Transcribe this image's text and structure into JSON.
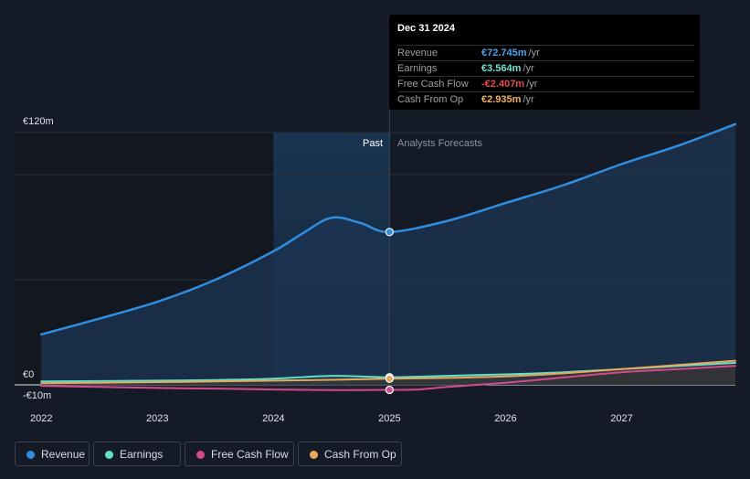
{
  "tooltip": {
    "date": "Dec 31 2024",
    "rows": [
      {
        "label": "Revenue",
        "value": "€72.745m",
        "unit": "/yr",
        "color": "#4aa3e8"
      },
      {
        "label": "Earnings",
        "value": "€3.564m",
        "unit": "/yr",
        "color": "#6fe3d0"
      },
      {
        "label": "Free Cash Flow",
        "value": "-€2.407m",
        "unit": "/yr",
        "color": "#e8494d"
      },
      {
        "label": "Cash From Op",
        "value": "€2.935m",
        "unit": "/yr",
        "color": "#f0b060"
      }
    ]
  },
  "legend": [
    {
      "label": "Revenue",
      "color": "#2f8ee0"
    },
    {
      "label": "Earnings",
      "color": "#5fe0c8"
    },
    {
      "label": "Free Cash Flow",
      "color": "#d24a8c"
    },
    {
      "label": "Cash From Op",
      "color": "#e8a85a"
    }
  ],
  "chart_data": {
    "type": "line",
    "past_label": "Past",
    "forecast_label": "Analysts Forecasts",
    "y_tick_labels": [
      {
        "value": 120,
        "label": "€120m"
      },
      {
        "value": 0,
        "label": "€0"
      },
      {
        "value": -10,
        "label": "-€10m"
      }
    ],
    "x_tick_labels": [
      "2022",
      "2023",
      "2024",
      "2025",
      "2026",
      "2027"
    ],
    "x_ticks": [
      2022,
      2023,
      2024,
      2025,
      2026,
      2027
    ],
    "xlim": [
      2021.77,
      2027.98
    ],
    "ylim": [
      -10,
      120
    ],
    "divider_x": 2025.0,
    "highlight_start_x": 2024.0,
    "grid": true,
    "legend_position": "bottom-left",
    "series": [
      {
        "name": "Revenue",
        "color": "#2f8ee0",
        "x": [
          2022.0,
          2022.5,
          2023.0,
          2023.5,
          2024.0,
          2024.25,
          2024.5,
          2024.75,
          2025.0,
          2025.5,
          2026.0,
          2026.5,
          2027.0,
          2027.5,
          2027.98
        ],
        "y": [
          24,
          31.5,
          39.5,
          50,
          63.5,
          72,
          79.5,
          77,
          72.7,
          78,
          86.5,
          95,
          105,
          114,
          124
        ]
      },
      {
        "name": "Earnings",
        "color": "#5fe0c8",
        "x": [
          2022.0,
          2022.5,
          2023.0,
          2023.5,
          2024.0,
          2024.5,
          2025.0,
          2025.5,
          2026.0,
          2026.5,
          2027.0,
          2027.5,
          2027.98
        ],
        "y": [
          1.6,
          1.8,
          2.0,
          2.3,
          2.9,
          4.3,
          3.6,
          4.3,
          5.0,
          6.0,
          7.5,
          9.0,
          10.5
        ]
      },
      {
        "name": "Free Cash Flow",
        "color": "#d24a8c",
        "x": [
          2022.0,
          2022.5,
          2023.0,
          2023.5,
          2024.0,
          2024.5,
          2025.0,
          2025.25,
          2025.5,
          2026.0,
          2026.5,
          2027.0,
          2027.5,
          2027.98
        ],
        "y": [
          -0.5,
          -1.0,
          -1.5,
          -1.8,
          -2.2,
          -2.5,
          -2.4,
          -2.2,
          -1.0,
          1.0,
          3.5,
          6.0,
          7.5,
          9.0
        ]
      },
      {
        "name": "Cash From Op",
        "color": "#e8a85a",
        "x": [
          2022.0,
          2022.5,
          2023.0,
          2023.5,
          2024.0,
          2024.5,
          2025.0,
          2025.5,
          2026.0,
          2026.5,
          2027.0,
          2027.5,
          2027.98
        ],
        "y": [
          0.8,
          1.0,
          1.3,
          1.6,
          2.0,
          2.4,
          2.9,
          3.3,
          4.0,
          5.5,
          7.5,
          9.5,
          11.5
        ]
      }
    ]
  }
}
